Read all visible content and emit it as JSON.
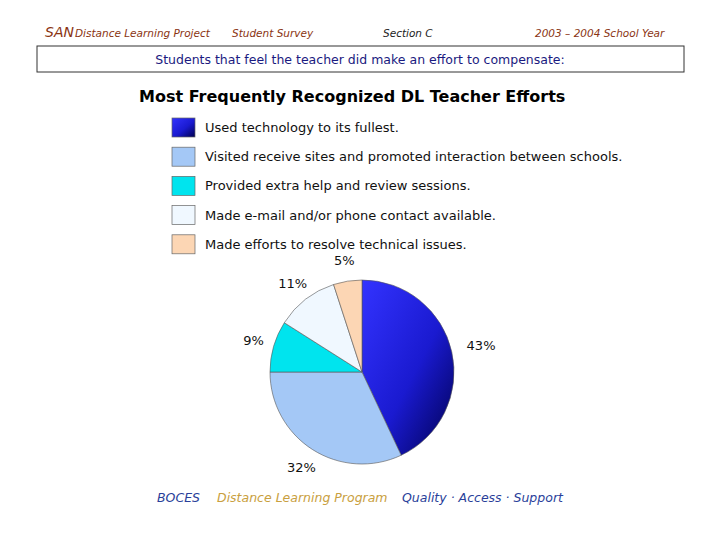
{
  "header": {
    "san": "SAN",
    "project": "Distance Learning Project",
    "survey": "Student Survey",
    "section": "Section C",
    "year": "2003 – 2004 School Year"
  },
  "chart_data": {
    "type": "pie",
    "subtitle": "Students that feel the teacher did make an effort to compensate:",
    "title": "Most Frequently Recognized DL Teacher Efforts",
    "categories": [
      "Used technology to its fullest.",
      "Visited receive sites and promoted interaction between schools.",
      "Provided extra help and review sessions.",
      "Made e-mail and/or phone contact available.",
      "Made efforts to resolve technical issues."
    ],
    "values": [
      43,
      32,
      9,
      11,
      5
    ],
    "value_labels": [
      "43%",
      "32%",
      "9%",
      "11%",
      "5%"
    ],
    "colors": [
      "#1a1ad0",
      "#a4c8f6",
      "#00e4ee",
      "#f0f8ff",
      "#fcd6b4"
    ],
    "data_labels": true,
    "legend": "top"
  },
  "footer": {
    "org": "BOCES",
    "program": "Distance Learning Program",
    "motto": "Quality · Access · Support"
  }
}
